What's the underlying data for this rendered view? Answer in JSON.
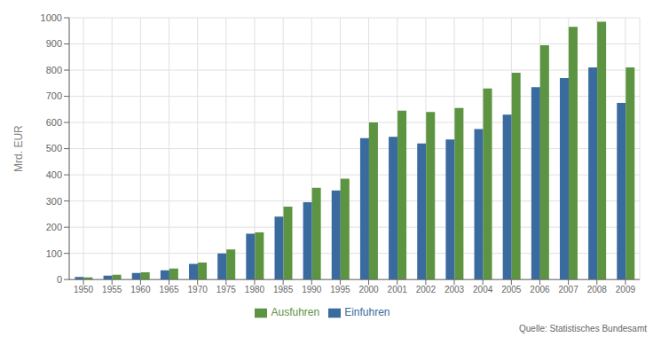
{
  "chart_data": {
    "type": "bar",
    "categories": [
      1950,
      1955,
      1960,
      1965,
      1970,
      1975,
      1980,
      1985,
      1990,
      1995,
      2000,
      2001,
      2002,
      2003,
      2004,
      2005,
      2006,
      2007,
      2008,
      2009
    ],
    "series": [
      {
        "name": "Einfuhren",
        "color": "#3a6b9e",
        "values": [
          10,
          15,
          25,
          35,
          60,
          100,
          175,
          240,
          295,
          340,
          540,
          545,
          520,
          535,
          575,
          630,
          735,
          770,
          810,
          675
        ]
      },
      {
        "name": "Ausfuhren",
        "color": "#5c9441",
        "values": [
          8,
          18,
          28,
          42,
          65,
          115,
          180,
          278,
          350,
          385,
          600,
          645,
          640,
          655,
          730,
          790,
          895,
          965,
          985,
          810
        ]
      }
    ],
    "ylabel": "Mrd. EUR",
    "ylim": [
      0,
      1000
    ],
    "yticks": [
      0,
      100,
      200,
      300,
      400,
      500,
      600,
      700,
      800,
      900,
      1000
    ],
    "grid": true,
    "legend": "bottom",
    "annotations": [
      "Quelle: Statistisches Bundesamt"
    ]
  }
}
